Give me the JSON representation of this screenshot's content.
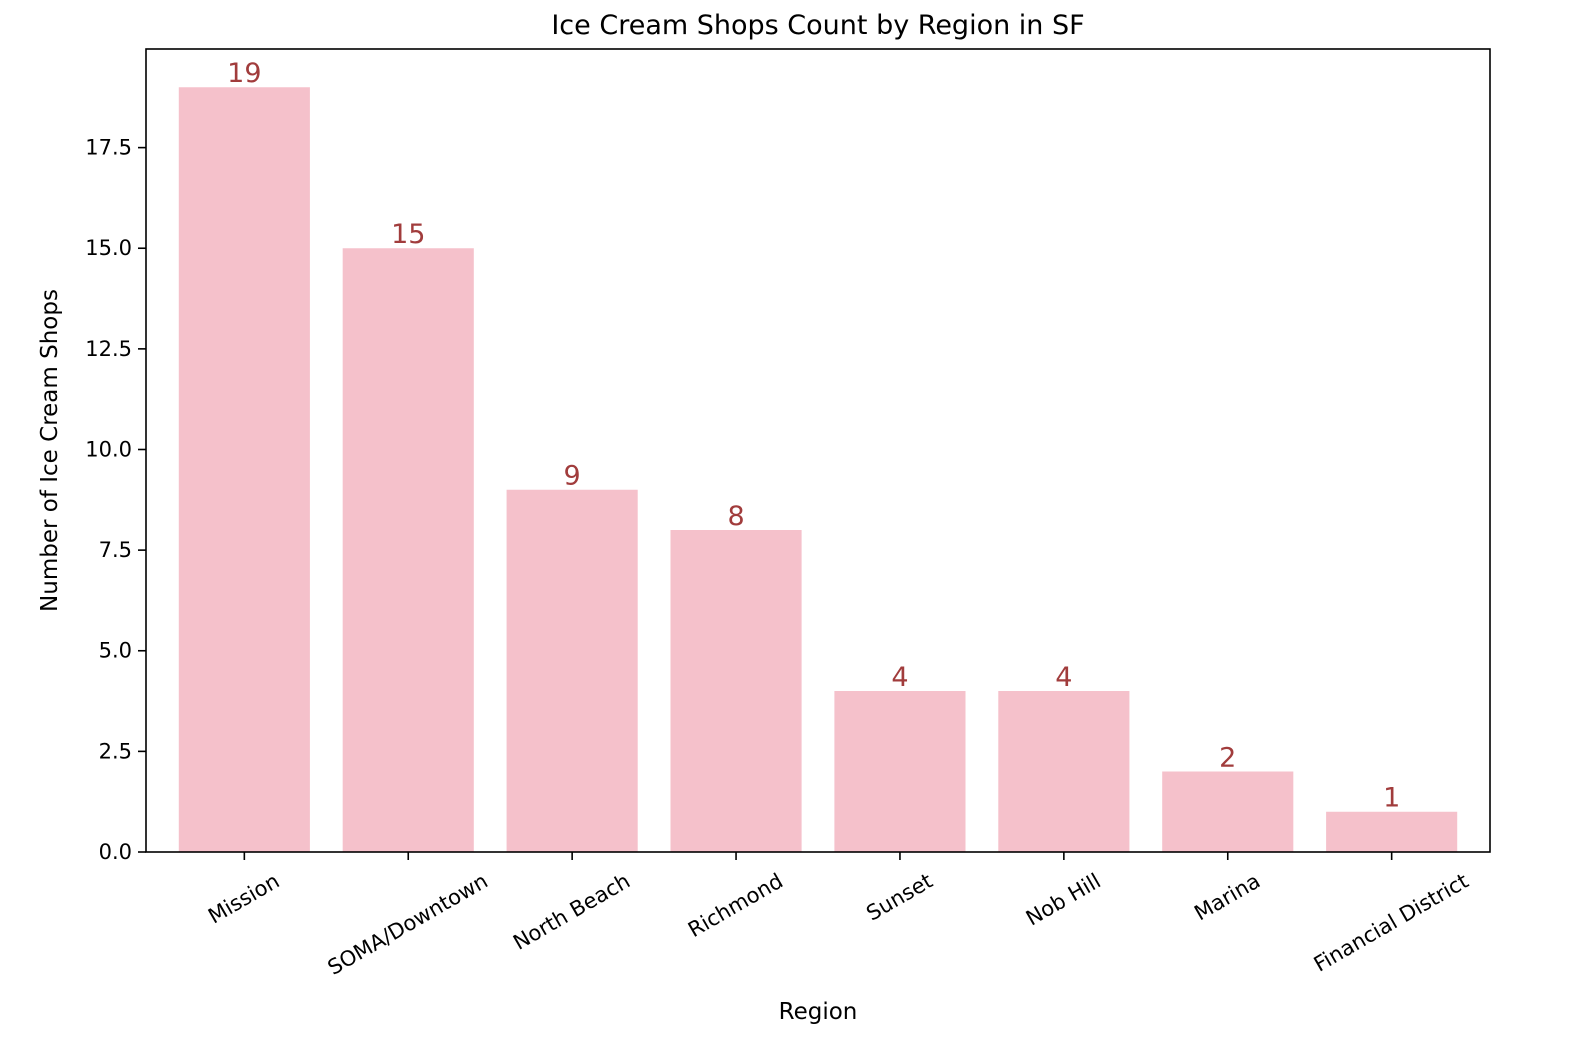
{
  "chart_data": {
    "type": "bar",
    "title": "Ice Cream Shops Count by Region in SF",
    "xlabel": "Region",
    "ylabel": "Number of Ice Cream Shops",
    "categories": [
      "Mission",
      "SOMA/Downtown",
      "North Beach",
      "Richmond",
      "Sunset",
      "Nob Hill",
      "Marina",
      "Financial District"
    ],
    "values": [
      19,
      15,
      9,
      8,
      4,
      4,
      2,
      1
    ],
    "data_labels": [
      "19",
      "15",
      "9",
      "8",
      "4",
      "4",
      "2",
      "1"
    ],
    "ylim": [
      0,
      19.95
    ],
    "yticks": [
      "0.0",
      "2.5",
      "5.0",
      "7.5",
      "10.0",
      "12.5",
      "15.0",
      "17.5"
    ],
    "ytick_values": [
      0,
      2.5,
      5,
      7.5,
      10,
      12.5,
      15,
      17.5
    ],
    "xtick_rotation": 30,
    "grid": false,
    "legend": "none",
    "bar_color": "#f5c1cb",
    "label_color": "#a13c3c",
    "axis_color": "#000000"
  }
}
